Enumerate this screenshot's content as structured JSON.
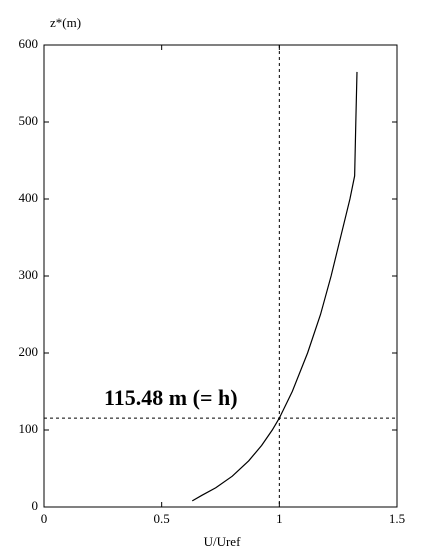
{
  "chart_data": {
    "type": "line",
    "x_label": "U/Uref",
    "y_label": "z*(m)",
    "annotation": "115.48 m (= h)",
    "x": [
      0.63,
      0.67,
      0.73,
      0.8,
      0.87,
      0.925,
      0.97,
      1.0,
      1.055,
      1.12,
      1.175,
      1.22,
      1.26,
      1.3,
      1.32,
      1.325,
      1.33
    ],
    "series": [
      {
        "color": "#000000",
        "values": [
          8,
          15,
          25,
          40,
          60,
          80,
          100,
          115.48,
          150,
          200,
          250,
          300,
          350,
          400,
          430,
          500,
          565
        ]
      }
    ],
    "xlim": [
      0,
      1.5
    ],
    "xticks": [
      0,
      0.5,
      1,
      1.5
    ],
    "ylim": [
      0,
      600
    ],
    "yticks": [
      0,
      100,
      200,
      300,
      400,
      500,
      600
    ],
    "vlines": [
      1
    ],
    "hlines": [
      115.48
    ],
    "grid": false
  }
}
